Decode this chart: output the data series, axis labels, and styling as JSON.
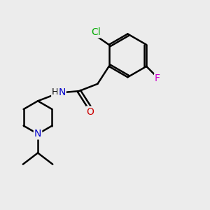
{
  "background_color": "#ececec",
  "atom_colors": {
    "C": "#000000",
    "N": "#0000cc",
    "O": "#cc0000",
    "Cl": "#00aa00",
    "F": "#cc00cc",
    "H": "#000000"
  },
  "bond_color": "#000000",
  "bond_width": 1.8,
  "font_size": 10,
  "figsize": [
    3.0,
    3.0
  ],
  "dpi": 100
}
